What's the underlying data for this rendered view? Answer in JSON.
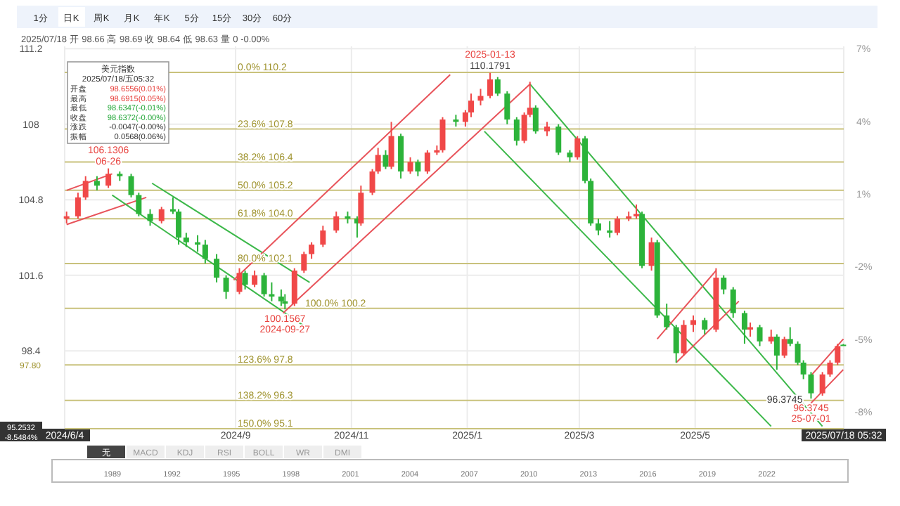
{
  "chart_data": {
    "type": "candlestick",
    "x": [
      "2024-06-04",
      "2024-06-10",
      "2024-06-14",
      "2024-06-20",
      "2024-06-26",
      "2024-07-02",
      "2024-07-08",
      "2024-07-12",
      "2024-07-18",
      "2024-07-24",
      "2024-07-30",
      "2024-08-02",
      "2024-08-06",
      "2024-08-12",
      "2024-08-16",
      "2024-08-22",
      "2024-08-27",
      "2024-09-03",
      "2024-09-06",
      "2024-09-11",
      "2024-09-16",
      "2024-09-20",
      "2024-09-25",
      "2024-09-27",
      "2024-10-02",
      "2024-10-07",
      "2024-10-11",
      "2024-10-17",
      "2024-10-24",
      "2024-10-30",
      "2024-11-04",
      "2024-11-06",
      "2024-11-12",
      "2024-11-15",
      "2024-11-19",
      "2024-11-22",
      "2024-11-27",
      "2024-12-02",
      "2024-12-06",
      "2024-12-11",
      "2024-12-16",
      "2024-12-19",
      "2024-12-26",
      "2024-12-31",
      "2025-01-03",
      "2025-01-08",
      "2025-01-13",
      "2025-01-17",
      "2025-01-22",
      "2025-01-27",
      "2025-01-31",
      "2025-02-03",
      "2025-02-06",
      "2025-02-12",
      "2025-02-18",
      "2025-02-24",
      "2025-02-28",
      "2025-03-04",
      "2025-03-07",
      "2025-03-11",
      "2025-03-17",
      "2025-03-21",
      "2025-03-27",
      "2025-03-31",
      "2025-04-03",
      "2025-04-08",
      "2025-04-11",
      "2025-04-16",
      "2025-04-21",
      "2025-04-25",
      "2025-04-30",
      "2025-05-06",
      "2025-05-12",
      "2025-05-16",
      "2025-05-21",
      "2025-05-27",
      "2025-05-30",
      "2025-06-04",
      "2025-06-10",
      "2025-06-13",
      "2025-06-17",
      "2025-06-20",
      "2025-06-24",
      "2025-06-27",
      "2025-07-01",
      "2025-07-07",
      "2025-07-11",
      "2025-07-15",
      "2025-07-18"
    ],
    "ohlc": [
      [
        104.0,
        104.3,
        103.8,
        104.1
      ],
      [
        104.1,
        105.1,
        104.0,
        104.9
      ],
      [
        104.9,
        105.8,
        104.8,
        105.6
      ],
      [
        105.6,
        105.8,
        105.2,
        105.4
      ],
      [
        105.4,
        106.1306,
        105.3,
        105.9
      ],
      [
        105.9,
        106.0,
        105.6,
        105.8
      ],
      [
        105.8,
        105.9,
        104.9,
        105.0
      ],
      [
        105.0,
        105.1,
        104.1,
        104.2
      ],
      [
        104.2,
        104.4,
        103.7,
        103.9
      ],
      [
        103.9,
        104.5,
        103.8,
        104.4
      ],
      [
        104.4,
        104.9,
        104.2,
        104.3
      ],
      [
        104.3,
        104.4,
        102.9,
        103.2
      ],
      [
        103.2,
        103.4,
        102.8,
        103.0
      ],
      [
        103.0,
        103.3,
        102.6,
        102.9
      ],
      [
        102.9,
        103.1,
        102.1,
        102.3
      ],
      [
        102.3,
        102.5,
        101.3,
        101.5
      ],
      [
        101.5,
        101.6,
        100.6,
        100.9
      ],
      [
        100.9,
        101.9,
        100.8,
        101.7
      ],
      [
        101.7,
        101.8,
        101.0,
        101.2
      ],
      [
        101.2,
        101.8,
        101.1,
        101.6
      ],
      [
        101.6,
        101.7,
        100.7,
        100.8
      ],
      [
        100.8,
        101.3,
        100.5,
        100.7
      ],
      [
        100.7,
        101.0,
        100.3,
        100.5
      ],
      [
        100.5,
        100.8,
        100.1567,
        100.4
      ],
      [
        100.4,
        101.9,
        100.3,
        101.8
      ],
      [
        101.8,
        102.6,
        101.7,
        102.5
      ],
      [
        102.5,
        103.0,
        102.3,
        102.9
      ],
      [
        102.9,
        103.7,
        102.8,
        103.5
      ],
      [
        103.5,
        104.3,
        103.4,
        104.1
      ],
      [
        104.1,
        104.3,
        103.8,
        104.0
      ],
      [
        104.0,
        104.1,
        103.2,
        103.8
      ],
      [
        103.8,
        105.4,
        103.7,
        105.1
      ],
      [
        105.1,
        106.1,
        105.0,
        106.0
      ],
      [
        106.0,
        107.0,
        105.9,
        106.7
      ],
      [
        106.7,
        106.9,
        106.1,
        106.2
      ],
      [
        106.2,
        108.1,
        106.1,
        107.5
      ],
      [
        107.5,
        107.6,
        105.7,
        106.0
      ],
      [
        106.0,
        106.6,
        105.9,
        106.4
      ],
      [
        106.4,
        106.5,
        105.8,
        106.0
      ],
      [
        106.0,
        106.9,
        105.9,
        106.8
      ],
      [
        106.8,
        107.1,
        106.7,
        106.9
      ],
      [
        106.9,
        108.3,
        106.8,
        108.2
      ],
      [
        108.2,
        108.4,
        107.9,
        108.1
      ],
      [
        108.1,
        108.6,
        107.9,
        108.5
      ],
      [
        108.5,
        109.3,
        108.3,
        109.0
      ],
      [
        109.0,
        109.5,
        108.8,
        109.2
      ],
      [
        109.2,
        110.1791,
        109.1,
        109.9
      ],
      [
        109.9,
        110.0,
        109.2,
        109.3
      ],
      [
        109.3,
        109.4,
        108.0,
        108.2
      ],
      [
        108.2,
        108.3,
        107.1,
        107.3
      ],
      [
        107.3,
        108.5,
        107.2,
        108.4
      ],
      [
        108.4,
        109.8,
        108.3,
        108.7
      ],
      [
        108.7,
        108.8,
        107.6,
        107.7
      ],
      [
        107.7,
        108.1,
        107.5,
        107.9
      ],
      [
        107.9,
        108.0,
        106.7,
        106.8
      ],
      [
        106.8,
        106.9,
        106.4,
        106.6
      ],
      [
        106.6,
        107.5,
        106.5,
        107.4
      ],
      [
        107.4,
        107.5,
        105.5,
        105.6
      ],
      [
        105.6,
        105.7,
        103.7,
        103.8
      ],
      [
        103.8,
        104.0,
        103.3,
        103.5
      ],
      [
        103.5,
        103.9,
        103.2,
        103.4
      ],
      [
        103.4,
        104.1,
        103.3,
        104.0
      ],
      [
        104.0,
        104.3,
        103.9,
        104.1
      ],
      [
        104.1,
        104.6,
        104.0,
        104.2
      ],
      [
        104.2,
        104.3,
        101.9,
        102.0
      ],
      [
        102.0,
        103.2,
        101.8,
        103.0
      ],
      [
        103.0,
        103.1,
        99.8,
        99.9
      ],
      [
        99.9,
        100.4,
        99.3,
        99.4
      ],
      [
        99.4,
        99.5,
        97.9,
        98.3
      ],
      [
        98.3,
        99.7,
        98.2,
        99.5
      ],
      [
        99.5,
        99.9,
        99.2,
        99.7
      ],
      [
        99.7,
        99.8,
        99.1,
        99.3
      ],
      [
        99.3,
        101.9,
        99.2,
        101.5
      ],
      [
        101.5,
        101.6,
        100.8,
        101.0
      ],
      [
        101.0,
        101.1,
        99.8,
        100.0
      ],
      [
        100.0,
        100.1,
        98.7,
        99.3
      ],
      [
        99.3,
        99.6,
        99.0,
        99.4
      ],
      [
        99.4,
        99.5,
        98.6,
        98.8
      ],
      [
        98.8,
        99.3,
        98.7,
        99.0
      ],
      [
        99.0,
        99.1,
        97.6,
        98.2
      ],
      [
        98.2,
        99.0,
        98.1,
        98.9
      ],
      [
        98.9,
        99.4,
        98.6,
        98.7
      ],
      [
        98.7,
        98.8,
        97.8,
        97.9
      ],
      [
        97.9,
        98.0,
        97.2,
        97.4
      ],
      [
        97.4,
        97.5,
        96.3745,
        96.6
      ],
      [
        96.6,
        97.5,
        96.5,
        97.4
      ],
      [
        97.4,
        98.0,
        97.3,
        97.9
      ],
      [
        97.9,
        98.7,
        97.8,
        98.6
      ],
      [
        98.66,
        98.69,
        98.63,
        98.64
      ]
    ],
    "colors": [
      "#f04848",
      "#f04848",
      "#f04848",
      "#2cb33a",
      "#f04848",
      "#2cb33a",
      "#2cb33a",
      "#2cb33a",
      "#2cb33a",
      "#f04848",
      "#2cb33a",
      "#2cb33a",
      "#2cb33a",
      "#2cb33a",
      "#2cb33a",
      "#2cb33a",
      "#2cb33a",
      "#f04848",
      "#2cb33a",
      "#f04848",
      "#2cb33a",
      "#2cb33a",
      "#2cb33a",
      "#2cb33a",
      "#f04848",
      "#f04848",
      "#f04848",
      "#f04848",
      "#f04848",
      "#2cb33a",
      "#2cb33a",
      "#f04848",
      "#f04848",
      "#f04848",
      "#2cb33a",
      "#f04848",
      "#2cb33a",
      "#f04848",
      "#2cb33a",
      "#f04848",
      "#f04848",
      "#f04848",
      "#2cb33a",
      "#f04848",
      "#f04848",
      "#f04848",
      "#f04848",
      "#2cb33a",
      "#2cb33a",
      "#2cb33a",
      "#f04848",
      "#f04848",
      "#2cb33a",
      "#f04848",
      "#2cb33a",
      "#2cb33a",
      "#f04848",
      "#2cb33a",
      "#2cb33a",
      "#2cb33a",
      "#2cb33a",
      "#f04848",
      "#f04848",
      "#f04848",
      "#2cb33a",
      "#f04848",
      "#2cb33a",
      "#2cb33a",
      "#2cb33a",
      "#f04848",
      "#f04848",
      "#2cb33a",
      "#f04848",
      "#2cb33a",
      "#2cb33a",
      "#2cb33a",
      "#f04848",
      "#2cb33a",
      "#f04848",
      "#2cb33a",
      "#f04848",
      "#2cb33a",
      "#2cb33a",
      "#2cb33a",
      "#2cb33a",
      "#f04848",
      "#f04848",
      "#f04848",
      "#2cb33a"
    ],
    "series": [
      {
        "type": "line",
        "color": "#e8535a",
        "x": [
          "2024-06-04",
          "2024-06-28"
        ],
        "values": [
          105.2,
          105.9
        ]
      },
      {
        "type": "line",
        "color": "#e8535a",
        "x": [
          "2024-06-04",
          "2024-07-16"
        ],
        "values": [
          103.75,
          104.9
        ]
      },
      {
        "type": "line",
        "color": "#3cb84a",
        "x": [
          "2024-06-28",
          "2024-10-08"
        ],
        "values": [
          105.0,
          99.4
        ]
      },
      {
        "type": "line",
        "color": "#3cb84a",
        "x": [
          "2024-07-19",
          "2024-10-10"
        ],
        "values": [
          105.5,
          101.3
        ]
      },
      {
        "type": "line",
        "color": "#e8535a",
        "x": [
          "2024-09-26",
          "2025-02-03"
        ],
        "values": [
          100.0,
          109.7
        ]
      },
      {
        "type": "line",
        "color": "#e8535a",
        "x": [
          "2024-08-31",
          "2024-12-23"
        ],
        "values": [
          101.4,
          110.1
        ]
      },
      {
        "type": "line",
        "color": "#3cb84a",
        "x": [
          "2025-02-03",
          "2025-07-07"
        ],
        "values": [
          109.7,
          95.2
        ]
      },
      {
        "type": "line",
        "color": "#3cb84a",
        "x": [
          "2025-01-10",
          "2025-06-10"
        ],
        "values": [
          107.7,
          95.2
        ]
      },
      {
        "type": "line",
        "color": "#e8535a",
        "x": [
          "2025-04-21",
          "2025-05-24"
        ],
        "values": [
          97.9,
          100.5
        ]
      },
      {
        "type": "line",
        "color": "#e8535a",
        "x": [
          "2025-04-11",
          "2025-05-12"
        ],
        "values": [
          98.9,
          101.8
        ]
      },
      {
        "type": "line",
        "color": "#e8535a",
        "x": [
          "2025-07-01",
          "2025-07-18"
        ],
        "values": [
          97.35,
          98.9
        ]
      },
      {
        "type": "line",
        "color": "#e8535a",
        "x": [
          "2025-06-30",
          "2025-07-18"
        ],
        "values": [
          96.1,
          97.6
        ]
      }
    ],
    "xlim": [
      "2024-06-03",
      "2025-07-18T05:32"
    ],
    "xticks": [
      {
        "value": "2024-06-03",
        "label": "2024/6/4"
      },
      {
        "value": "2024-09-01",
        "label": "2024/9"
      },
      {
        "value": "2024-11-01",
        "label": "2024/11"
      },
      {
        "value": "2025-01-01",
        "label": "2025/1"
      },
      {
        "value": "2025-03-01",
        "label": "2025/3"
      },
      {
        "value": "2025-05-01",
        "label": "2025/5"
      },
      {
        "value": "2025-07-18T05:32",
        "label": "2025/07/18 05:32"
      }
    ],
    "ylim": [
      95.1,
      111.3
    ],
    "yticks": [
      98.4,
      101.6,
      104.8,
      108,
      111.2
    ],
    "y2lim": [
      -8.7,
      7.1
    ],
    "y2ticks": [
      {
        "value": 7,
        "label": "7%"
      },
      {
        "value": 4,
        "label": "4%"
      },
      {
        "value": 1,
        "label": "1%"
      },
      {
        "value": -2,
        "label": "-2%"
      },
      {
        "value": -5,
        "label": "-5%"
      },
      {
        "value": -8,
        "label": "-8%"
      }
    ],
    "grid": true,
    "ref_lines": [
      {
        "axis": "y",
        "value": 110.2,
        "label": "0.0% 110.2",
        "color": "#c9c27c"
      },
      {
        "axis": "y",
        "value": 107.8,
        "label": "23.6% 107.8",
        "color": "#c9c27c"
      },
      {
        "axis": "y",
        "value": 106.4,
        "label": "38.2% 106.4",
        "color": "#c9c27c"
      },
      {
        "axis": "y",
        "value": 105.2,
        "label": "50.0% 105.2",
        "color": "#c9c27c"
      },
      {
        "axis": "y",
        "value": 104.0,
        "label": "61.8% 104.0",
        "color": "#c9c27c"
      },
      {
        "axis": "y",
        "value": 102.1,
        "label": "80.0% 102.1",
        "color": "#c9c27c"
      },
      {
        "axis": "y",
        "value": 100.2,
        "label": "100.0% 100.2",
        "color": "#c9c27c"
      },
      {
        "axis": "y",
        "value": 97.8,
        "label": "123.6% 97.8",
        "color": "#c9c27c"
      },
      {
        "axis": "y",
        "value": 96.3,
        "label": "138.2% 96.3",
        "color": "#c9c27c"
      },
      {
        "axis": "y",
        "value": 95.1,
        "label": "150.0% 95.1",
        "color": "#c9c27c"
      }
    ],
    "annotations": [
      "1分",
      "日K",
      "周K",
      "月K",
      "年K",
      "5分",
      "15分",
      "30分",
      "60分",
      "2025/07/18 开 98.66 高 98.69 收 98.64 低 98.63 量 0 -0.00%",
      "美元指数",
      "2025/07/18/五05:32",
      "开盘",
      "98.6556(0.01%)",
      "最高",
      "98.6915(0.05%)",
      "最低",
      "98.6347(-0.01%)",
      "收盘",
      "98.6372(-0.00%)",
      "涨跌",
      "-0.0047(-0.00%)",
      "振幅",
      "0.0568(0.06%)",
      "无",
      "MACD",
      "KDJ",
      "RSI",
      "BOLL",
      "WR",
      "DMI",
      "1989",
      "1992",
      "1995",
      "1998",
      "2001",
      "2004",
      "2007",
      "2010",
      "2013",
      "2016",
      "2019",
      "2022",
      "97.80",
      "95.2532",
      "-8.5484%",
      {
        "text": "106.1306",
        "x": "2024-06-26",
        "y": 106.1306
      },
      {
        "text": "06-26",
        "x": "2024-06-26",
        "y": 106.1306
      },
      {
        "text": "100.1567",
        "x": "2024-09-27",
        "y": 100.1567
      },
      {
        "text": "2024-09-27",
        "x": "2024-09-27",
        "y": 100.1567
      },
      {
        "text": "2025-01-13",
        "x": "2025-01-13",
        "y": 110.1791
      },
      {
        "text": "110.1791",
        "x": "2025-01-13",
        "y": 110.1791
      },
      {
        "text": "96.3745",
        "x": "2025-07-01",
        "y": 96.3745
      },
      {
        "text": "96.3745",
        "x": "2025-07-01",
        "y": 96.3745
      },
      {
        "text": "25-07-01",
        "x": "2025-07-01",
        "y": 96.3745
      }
    ]
  }
}
